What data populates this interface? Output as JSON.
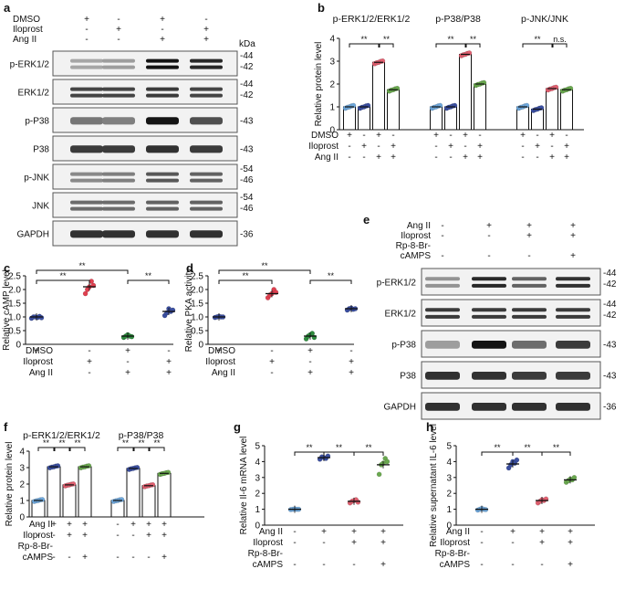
{
  "panel_labels": {
    "a": "a",
    "b": "b",
    "c": "c",
    "d": "d",
    "e": "e",
    "f": "f",
    "g": "g",
    "h": "h"
  },
  "blot_a": {
    "kda": "kDa",
    "conditions": [
      {
        "label": "DMSO",
        "values": [
          "+",
          "-",
          "+",
          "-"
        ]
      },
      {
        "label": "Iloprost",
        "values": [
          "-",
          "+",
          "-",
          "+"
        ]
      },
      {
        "label": "Ang II",
        "values": [
          "-",
          "-",
          "+",
          "+"
        ]
      }
    ],
    "rows": [
      {
        "label": "p-ERK1/2",
        "markers": [
          "-44",
          "-42"
        ],
        "int": [
          0.25,
          0.3,
          1,
          0.9
        ]
      },
      {
        "label": "ERK1/2",
        "markers": [
          "-44",
          "-42"
        ],
        "int": [
          0.75,
          0.75,
          0.8,
          0.75
        ]
      },
      {
        "label": "p-P38",
        "markers": [
          "-43"
        ],
        "int": [
          0.5,
          0.45,
          1,
          0.7
        ]
      },
      {
        "label": "P38",
        "markers": [
          "-43"
        ],
        "int": [
          0.8,
          0.8,
          0.85,
          0.8
        ]
      },
      {
        "label": "p-JNK",
        "markers": [
          "-54",
          "-46"
        ],
        "int": [
          0.4,
          0.45,
          0.65,
          0.6
        ]
      },
      {
        "label": "JNK",
        "markers": [
          "-54",
          "-46"
        ],
        "int": [
          0.55,
          0.55,
          0.6,
          0.6
        ]
      },
      {
        "label": "GAPDH",
        "markers": [
          "-36"
        ],
        "int": [
          0.85,
          0.85,
          0.85,
          0.85
        ]
      }
    ]
  },
  "blot_e": {
    "conditions": [
      {
        "label": "Ang II",
        "values": [
          "-",
          "+",
          "+",
          "+"
        ]
      },
      {
        "label": "Iloprost",
        "values": [
          "-",
          "-",
          "+",
          "+"
        ]
      },
      {
        "label": "Rp-8-Br-",
        "values": [
          "",
          "",
          "",
          ""
        ]
      },
      {
        "label": "cAMPS",
        "values": [
          "-",
          "-",
          "-",
          "+"
        ]
      }
    ],
    "rows": [
      {
        "label": "p-ERK1/2",
        "markers": [
          "-44",
          "-42"
        ],
        "int": [
          0.35,
          0.9,
          0.6,
          0.85
        ]
      },
      {
        "label": "ERK1/2",
        "markers": [
          "-44",
          "-42"
        ],
        "int": [
          0.8,
          0.8,
          0.8,
          0.8
        ]
      },
      {
        "label": "p-P38",
        "markers": [
          "-43"
        ],
        "int": [
          0.3,
          1,
          0.55,
          0.8
        ]
      },
      {
        "label": "P38",
        "markers": [
          "-43"
        ],
        "int": [
          0.85,
          0.85,
          0.8,
          0.8
        ]
      },
      {
        "label": "GAPDH",
        "markers": [
          "-36"
        ],
        "int": [
          0.85,
          0.85,
          0.85,
          0.85
        ]
      }
    ]
  },
  "chart_data": [
    {
      "panel": "b",
      "type": "bar",
      "ylabel": "Relative protein level",
      "ylim": [
        0,
        4
      ],
      "yticks": [
        0,
        1,
        2,
        3,
        4
      ],
      "groups": [
        {
          "title": "p-ERK1/2/ERK1/2",
          "values": [
            1.0,
            1.0,
            2.95,
            1.75
          ],
          "colors": [
            "#6fa8dc",
            "#3b4fa0",
            "#e06070",
            "#6aa84f"
          ],
          "sig": [
            "**",
            "**"
          ]
        },
        {
          "title": "p-P38/P38",
          "values": [
            1.0,
            1.0,
            3.3,
            2.0
          ],
          "colors": [
            "#6fa8dc",
            "#3b4fa0",
            "#e06070",
            "#6aa84f"
          ],
          "sig": [
            "**",
            "**"
          ]
        },
        {
          "title": "p-JNK/JNK",
          "values": [
            1.0,
            0.9,
            1.8,
            1.75
          ],
          "colors": [
            "#6fa8dc",
            "#3b4fa0",
            "#e06070",
            "#6aa84f"
          ],
          "sig": [
            "**",
            "n.s."
          ]
        }
      ],
      "conditions": [
        {
          "label": "DMSO",
          "values": [
            "+",
            "-",
            "+",
            "-"
          ]
        },
        {
          "label": "Iloprost",
          "values": [
            "-",
            "+",
            "-",
            "+"
          ]
        },
        {
          "label": "Ang II",
          "values": [
            "-",
            "-",
            "+",
            "+"
          ]
        }
      ]
    },
    {
      "panel": "c",
      "type": "scatter",
      "ylabel": "Relative cAMP level",
      "ylim": [
        0,
        2.5
      ],
      "yticks": [
        "0",
        "0.5",
        "1.0",
        "1.5",
        "2.0",
        "2.5"
      ],
      "means": [
        1.0,
        2.1,
        0.3,
        1.2
      ],
      "points": [
        [
          0.95,
          1.0,
          1.0,
          0.98,
          1.02,
          0.97
        ],
        [
          1.85,
          2.0,
          2.1,
          2.3,
          2.15
        ],
        [
          0.25,
          0.3,
          0.35,
          0.3,
          0.28
        ],
        [
          1.05,
          1.15,
          1.3,
          1.2,
          1.25
        ]
      ],
      "colors": [
        "#3b4fa0",
        "#e04050",
        "#2e8b3e",
        "#3b4fa0"
      ],
      "sig": [
        {
          "a": 0,
          "b": 1,
          "text": "**",
          "level": 1
        },
        {
          "a": 2,
          "b": 3,
          "text": "**",
          "level": 1
        },
        {
          "a": 0,
          "b": 2,
          "text": "**",
          "level": 2
        }
      ],
      "conditions": [
        {
          "label": "DMSO",
          "values": [
            "+",
            "-",
            "+",
            "-"
          ]
        },
        {
          "label": "Iloprost",
          "values": [
            "-",
            "+",
            "-",
            "+"
          ]
        },
        {
          "label": "Ang II",
          "values": [
            "-",
            "-",
            "+",
            "+"
          ]
        }
      ]
    },
    {
      "panel": "d",
      "type": "scatter",
      "ylabel": "Relative PKA activity",
      "ylim": [
        0,
        2.5
      ],
      "yticks": [
        "0",
        "0.5",
        "1.0",
        "1.5",
        "2.0",
        "2.5"
      ],
      "means": [
        1.0,
        1.85,
        0.3,
        1.3
      ],
      "points": [
        [
          0.98,
          1.0,
          1.02,
          1.0,
          1.0
        ],
        [
          1.7,
          1.8,
          1.85,
          2.0,
          1.9
        ],
        [
          0.2,
          0.3,
          0.35,
          0.4,
          0.25
        ],
        [
          1.25,
          1.3,
          1.32,
          1.28,
          1.3
        ]
      ],
      "colors": [
        "#3b4fa0",
        "#e04050",
        "#2e8b3e",
        "#3b4fa0"
      ],
      "sig": [
        {
          "a": 0,
          "b": 1,
          "text": "**",
          "level": 1
        },
        {
          "a": 2,
          "b": 3,
          "text": "**",
          "level": 1
        },
        {
          "a": 0,
          "b": 2,
          "text": "**",
          "level": 2
        }
      ],
      "conditions": [
        {
          "label": "DMSO",
          "values": [
            "+",
            "-",
            "+",
            "-"
          ]
        },
        {
          "label": "Iloprost",
          "values": [
            "-",
            "+",
            "-",
            "+"
          ]
        },
        {
          "label": "Ang II",
          "values": [
            "-",
            "-",
            "+",
            "+"
          ]
        }
      ]
    },
    {
      "panel": "f",
      "type": "bar",
      "ylabel": "Relative protein level",
      "ylim": [
        0,
        4
      ],
      "yticks": [
        0,
        1,
        2,
        3,
        4
      ],
      "groups": [
        {
          "title": "p-ERK1/2/ERK1/2",
          "values": [
            1.0,
            3.05,
            1.95,
            3.05
          ],
          "colors": [
            "#6fa8dc",
            "#3b4fa0",
            "#e06070",
            "#6aa84f"
          ],
          "sig": [
            "**",
            "**",
            "**"
          ]
        },
        {
          "title": "p-P38/P38",
          "values": [
            1.0,
            2.95,
            1.9,
            2.65
          ],
          "colors": [
            "#6fa8dc",
            "#3b4fa0",
            "#e06070",
            "#6aa84f"
          ],
          "sig": [
            "**",
            "**",
            "**"
          ]
        }
      ],
      "conditions": [
        {
          "label": "Ang II",
          "values": [
            "-",
            "+",
            "+",
            "+"
          ]
        },
        {
          "label": "Iloprost",
          "values": [
            "-",
            "-",
            "+",
            "+"
          ]
        },
        {
          "label": "Rp-8-Br-",
          "values": [
            "",
            "",
            "",
            ""
          ]
        },
        {
          "label": "cAMPS",
          "values": [
            "-",
            "-",
            "-",
            "+"
          ]
        }
      ]
    },
    {
      "panel": "g",
      "type": "scatter",
      "ylabel": "Relative Il-6 mRNA level",
      "ylim": [
        0,
        5
      ],
      "yticks": [
        "0",
        "1",
        "2",
        "3",
        "4",
        "5"
      ],
      "means": [
        1.0,
        4.25,
        1.5,
        3.8
      ],
      "points": [
        [
          0.98,
          1.0,
          1.02,
          1.0,
          1.0
        ],
        [
          4.15,
          4.3,
          4.25,
          4.2,
          4.35
        ],
        [
          1.4,
          1.5,
          1.55,
          1.6,
          1.45
        ],
        [
          3.2,
          3.8,
          3.9,
          4.2,
          4.0
        ]
      ],
      "colors": [
        "#6fa8dc",
        "#3b4fa0",
        "#e06070",
        "#6aa84f"
      ],
      "sig": [
        {
          "a": 0,
          "b": 1,
          "text": "**",
          "level": 1
        },
        {
          "a": 1,
          "b": 2,
          "text": "**",
          "level": 1
        },
        {
          "a": 2,
          "b": 3,
          "text": "**",
          "level": 1
        }
      ],
      "conditions": [
        {
          "label": "Ang II",
          "values": [
            "-",
            "+",
            "+",
            "+"
          ]
        },
        {
          "label": "Iloprost",
          "values": [
            "-",
            "-",
            "+",
            "+"
          ]
        },
        {
          "label": "Rp-8-Br-",
          "values": [
            "",
            "",
            "",
            ""
          ]
        },
        {
          "label": "cAMPS",
          "values": [
            "-",
            "-",
            "-",
            "+"
          ]
        }
      ]
    },
    {
      "panel": "h",
      "type": "scatter",
      "ylabel": "Relative supernatant IL-6 level",
      "ylim": [
        0,
        5
      ],
      "yticks": [
        "0",
        "1",
        "2",
        "3",
        "4",
        "5"
      ],
      "means": [
        1.0,
        3.85,
        1.55,
        2.85
      ],
      "points": [
        [
          0.95,
          1.0,
          1.05,
          1.0,
          0.98
        ],
        [
          3.6,
          3.8,
          4.0,
          3.9,
          4.1
        ],
        [
          1.4,
          1.5,
          1.6,
          1.55,
          1.65
        ],
        [
          2.7,
          2.8,
          2.9,
          2.85,
          3.0
        ]
      ],
      "colors": [
        "#6fa8dc",
        "#3b4fa0",
        "#e06070",
        "#6aa84f"
      ],
      "sig": [
        {
          "a": 0,
          "b": 1,
          "text": "**",
          "level": 1
        },
        {
          "a": 1,
          "b": 2,
          "text": "**",
          "level": 1
        },
        {
          "a": 2,
          "b": 3,
          "text": "**",
          "level": 1
        }
      ],
      "conditions": [
        {
          "label": "Ang II",
          "values": [
            "-",
            "+",
            "+",
            "+"
          ]
        },
        {
          "label": "Iloprost",
          "values": [
            "-",
            "-",
            "+",
            "+"
          ]
        },
        {
          "label": "Rp-8-Br-",
          "values": [
            "",
            "",
            "",
            ""
          ]
        },
        {
          "label": "cAMPS",
          "values": [
            "-",
            "-",
            "-",
            "+"
          ]
        }
      ]
    }
  ]
}
